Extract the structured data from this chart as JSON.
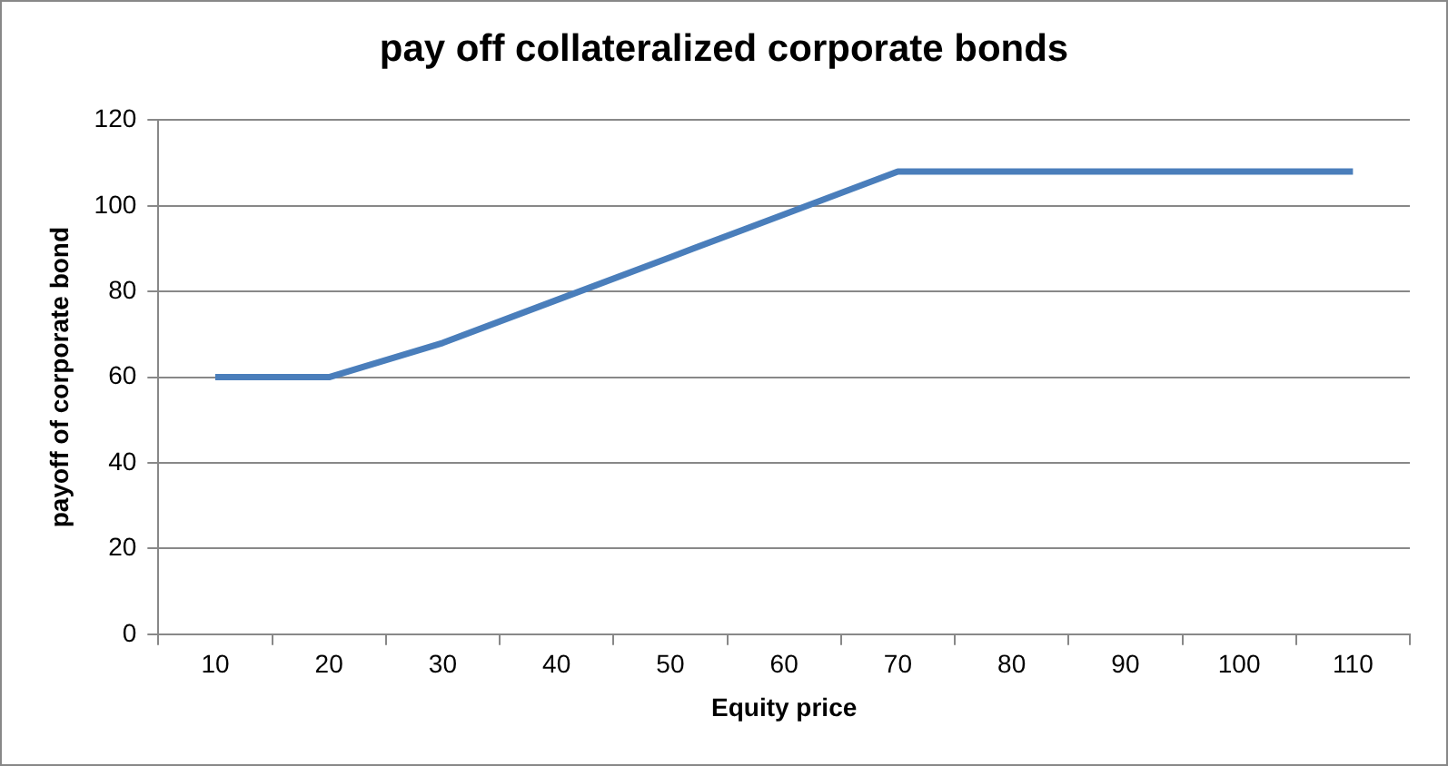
{
  "chart_data": {
    "type": "line",
    "title": "pay off collateralized corporate bonds",
    "xlabel": "Equity price",
    "ylabel": "payoff of corporate bond",
    "categories": [
      "10",
      "20",
      "30",
      "40",
      "50",
      "60",
      "70",
      "80",
      "90",
      "100",
      "110"
    ],
    "series": [
      {
        "color": "#4a7ebb",
        "values": [
          60,
          60,
          68,
          78,
          88,
          98,
          108,
          108,
          108,
          108,
          108
        ]
      }
    ],
    "ylim": [
      0,
      120
    ],
    "yticks": [
      0,
      20,
      40,
      60,
      80,
      100,
      120
    ],
    "grid": "y",
    "legend": false,
    "marker": "none",
    "line_style": "solid"
  }
}
